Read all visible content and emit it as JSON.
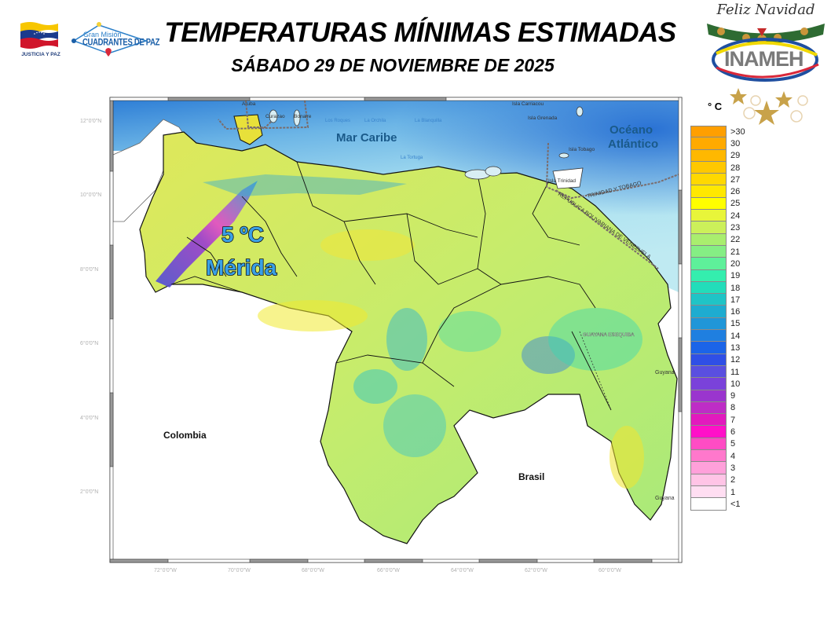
{
  "header": {
    "title": "TEMPERATURAS MÍNIMAS ESTIMADAS",
    "subtitle": "SÁBADO 29 DE NOVIEMBRE  DE 2025"
  },
  "logos": {
    "justicia": "JUSTICIA Y PAZ",
    "gran_mision_line1": "Gran Misión",
    "gran_mision_line2": "CUADRANTES DE PAZ",
    "holiday_banner": "Feliz Navidad",
    "inameh": "INAMEH"
  },
  "legend": {
    "unit": "° C",
    "items": [
      {
        "label": ">30",
        "color": "#FF9F00"
      },
      {
        "label": "30",
        "color": "#FFAA00"
      },
      {
        "label": "29",
        "color": "#FFB800"
      },
      {
        "label": "28",
        "color": "#FFC800"
      },
      {
        "label": "27",
        "color": "#FFD800"
      },
      {
        "label": "26",
        "color": "#FFE800"
      },
      {
        "label": "25",
        "color": "#FFFF00"
      },
      {
        "label": "24",
        "color": "#E8F53A"
      },
      {
        "label": "23",
        "color": "#CCF05A"
      },
      {
        "label": "22",
        "color": "#A9EE6E"
      },
      {
        "label": "21",
        "color": "#85EE84"
      },
      {
        "label": "20",
        "color": "#5EF09A"
      },
      {
        "label": "19",
        "color": "#34EEAE"
      },
      {
        "label": "18",
        "color": "#22DDBA"
      },
      {
        "label": "17",
        "color": "#1FC4C6"
      },
      {
        "label": "16",
        "color": "#1EACD0"
      },
      {
        "label": "15",
        "color": "#2096D8"
      },
      {
        "label": "14",
        "color": "#1F7FE0"
      },
      {
        "label": "13",
        "color": "#1B64E8"
      },
      {
        "label": "12",
        "color": "#2F4FE6"
      },
      {
        "label": "11",
        "color": "#5A4FE0"
      },
      {
        "label": "10",
        "color": "#7A42DA"
      },
      {
        "label": "9",
        "color": "#9A35CE"
      },
      {
        "label": "8",
        "color": "#BE2DC6"
      },
      {
        "label": "7",
        "color": "#E21ABE"
      },
      {
        "label": "6",
        "color": "#FF10C8"
      },
      {
        "label": "5",
        "color": "#FF4CC4"
      },
      {
        "label": "4",
        "color": "#FF78CC"
      },
      {
        "label": "3",
        "color": "#FFA0DA"
      },
      {
        "label": "2",
        "color": "#FFC4E6"
      },
      {
        "label": "1",
        "color": "#FFDEF2"
      },
      {
        "label": "<1",
        "color": "#FFFFFF"
      }
    ]
  },
  "map": {
    "lat_labels": [
      "12°0'0\"N",
      "10°0'0\"N",
      "8°0'0\"N",
      "6°0'0\"N",
      "4°0'0\"N",
      "2°0'0\"N"
    ],
    "lon_labels": [
      "72°0'0\"W",
      "70°0'0\"W",
      "68°0'0\"W",
      "66°0'0\"W",
      "64°0'0\"W",
      "62°0'0\"W",
      "60°0'0\"W"
    ],
    "sea_labels": {
      "caribe": "Mar Caribe",
      "atlantico_1": "Océano",
      "atlantico_2": "Atlántico"
    },
    "island_labels": {
      "aruba": "Aruba",
      "curazao": "Curazao",
      "bonaire": "Bonaire",
      "los_roques": "Los Roques",
      "la_orchila": "La Orchila",
      "la_blanquilla": "La Blanquilla",
      "la_tortuga": "La Tortuga",
      "carriacou": "Isla Carriacou",
      "grenada": "Isla Grenada",
      "tobago": "Isla Tobago",
      "trinidad": "Isla Trinidad"
    },
    "boundary_labels": {
      "tt": "TRINIDAD Y TOBAGO",
      "rbv": "REPÚBLICA BOLIVARIANA DE VENEZUELA",
      "esequiba": "GUAYANA ESEQUIBA"
    },
    "country_labels": {
      "colombia": "Colombia",
      "brasil": "Brasil",
      "guyana_1": "Guyana",
      "guyana_2": "Guyana"
    },
    "annotation": {
      "value": "5 ºC",
      "place": "Mérida"
    }
  }
}
